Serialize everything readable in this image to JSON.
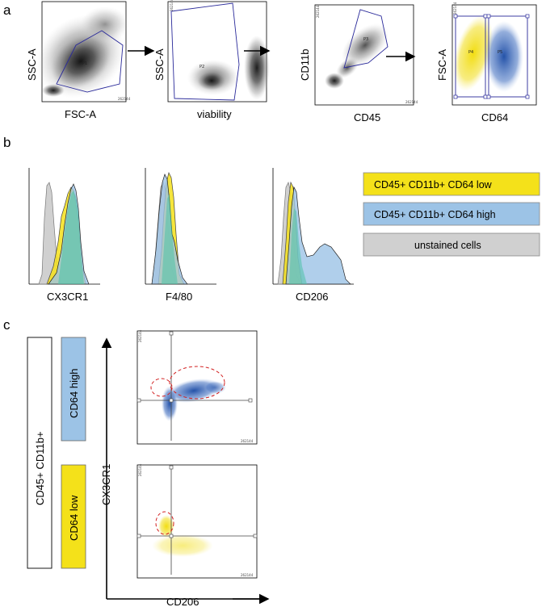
{
  "panels": {
    "a": "a",
    "b": "b",
    "c": "c"
  },
  "row_a": {
    "plot1": {
      "ylabel": "SSC-A",
      "xlabel": "FSC-A",
      "gate": "P1",
      "ytick": "262144",
      "xtick": "262144"
    },
    "plot2": {
      "ylabel": "SSC-A",
      "xlabel": "viability",
      "gate": "P2",
      "ytick": "262144"
    },
    "plot3": {
      "ylabel": "CD11b",
      "xlabel": "CD45",
      "gate": "P3",
      "ytick": "262144",
      "xtick": "262144"
    },
    "plot4": {
      "ylabel": "FSC-A",
      "xlabel": "CD64",
      "gate_left": "P4",
      "gate_right": "P5",
      "ytick": "262144"
    }
  },
  "row_b": {
    "hist1": {
      "xlabel": "CX3CR1"
    },
    "hist2": {
      "xlabel": "F4/80"
    },
    "hist3": {
      "xlabel": "CD206"
    },
    "legend": [
      {
        "label": "CD45+ CD11b+ CD64 low",
        "color": "#f4e11a"
      },
      {
        "label": "CD45+ CD11b+ CD64 high",
        "color": "#9cc3e6"
      },
      {
        "label": "unstained cells",
        "color": "#d0d0d0"
      }
    ]
  },
  "row_c": {
    "group_label": "CD45+ CD11b+",
    "high_label": "CD64 high",
    "low_label": "CD64 low",
    "yaxis": "CX3CR1",
    "xaxis": "CD206",
    "ytick": "262144",
    "xtick": "262144"
  },
  "colors": {
    "yellow": "#f4e11a",
    "blue": "#9cc3e6",
    "grey": "#d0d0d0",
    "gate": "#2a2a9a",
    "dashed": "#d22020",
    "dotblue": "#2f5fb0",
    "dotyellow": "#e8da20"
  }
}
